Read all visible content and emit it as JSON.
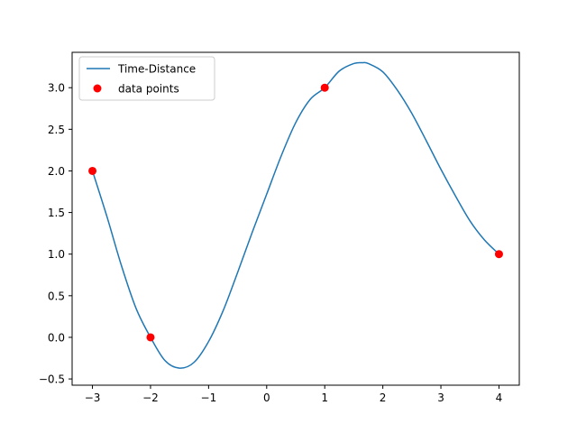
{
  "chart_data": {
    "type": "line",
    "title": "",
    "xlabel": "",
    "ylabel": "",
    "xlim": [
      -3.35,
      4.35
    ],
    "ylim": [
      -0.575,
      3.425
    ],
    "xticks": [
      -3,
      -2,
      -1,
      0,
      1,
      2,
      3,
      4
    ],
    "xtick_labels": [
      "−3",
      "−2",
      "−1",
      "0",
      "1",
      "2",
      "3",
      "4"
    ],
    "yticks": [
      -0.5,
      0.0,
      0.5,
      1.0,
      1.5,
      2.0,
      2.5,
      3.0
    ],
    "ytick_labels": [
      "−0.5",
      "0.0",
      "0.5",
      "1.0",
      "1.5",
      "2.0",
      "2.5",
      "3.0"
    ],
    "grid": false,
    "legend_position": "upper-left",
    "series": [
      {
        "name": "Time-Distance",
        "kind": "line",
        "color": "#1f77b4",
        "x": [
          -3.0,
          -2.75,
          -2.5,
          -2.25,
          -2.0,
          -1.75,
          -1.5,
          -1.25,
          -1.0,
          -0.75,
          -0.5,
          -0.25,
          0.0,
          0.25,
          0.5,
          0.75,
          1.0,
          1.25,
          1.5,
          1.65,
          1.75,
          2.0,
          2.25,
          2.5,
          2.75,
          3.0,
          3.25,
          3.5,
          3.75,
          4.0
        ],
        "y": [
          2.0,
          1.45,
          0.86,
          0.35,
          0.0,
          -0.28,
          -0.37,
          -0.3,
          -0.05,
          0.32,
          0.78,
          1.26,
          1.72,
          2.18,
          2.58,
          2.86,
          3.0,
          3.2,
          3.29,
          3.3,
          3.29,
          3.19,
          2.97,
          2.69,
          2.36,
          2.02,
          1.7,
          1.4,
          1.17,
          1.0
        ]
      },
      {
        "name": "data points",
        "kind": "scatter",
        "color": "#ff0000",
        "x": [
          -3,
          -2,
          1,
          4
        ],
        "y": [
          2,
          0,
          3,
          1
        ]
      }
    ]
  }
}
